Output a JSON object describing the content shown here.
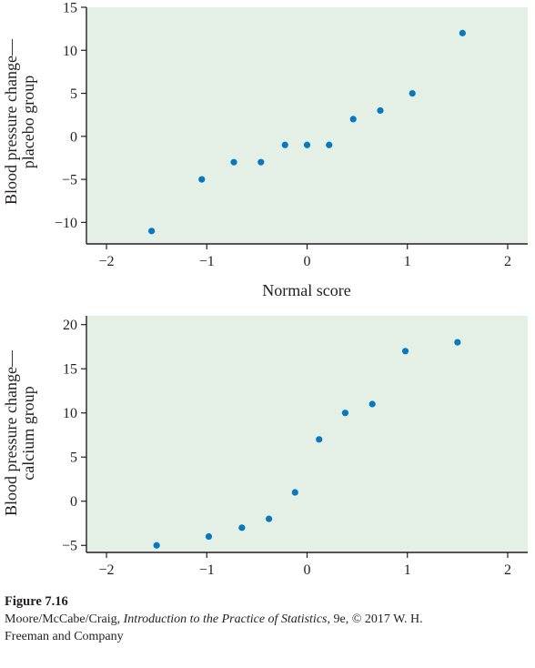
{
  "chart_data": [
    {
      "type": "scatter",
      "xlabel": "Normal score",
      "ylabel": [
        "Blood pressure change—",
        "placebo group"
      ],
      "xlim": [
        -2.2,
        2.2
      ],
      "ylim": [
        -12.5,
        15
      ],
      "xticks": [
        -2,
        -1,
        0,
        1,
        2
      ],
      "xtick_labels": [
        "−2",
        "−1",
        "0",
        "1",
        "2"
      ],
      "yticks": [
        -10,
        -5,
        0,
        5,
        10,
        15
      ],
      "ytick_labels": [
        "−10",
        "−5",
        "0",
        "5",
        "10",
        "15"
      ],
      "grid": false,
      "background_color": "#e4f0e6",
      "point_color": "#0a78be",
      "x": [
        -1.55,
        -1.05,
        -0.73,
        -0.46,
        -0.22,
        0.0,
        0.22,
        0.46,
        0.73,
        1.05,
        1.55
      ],
      "y": [
        -11,
        -5,
        -3,
        -3,
        -1,
        -1,
        -1,
        2,
        3,
        5,
        12
      ]
    },
    {
      "type": "scatter",
      "xlabel": "Normal score",
      "ylabel": [
        "Blood pressure change—",
        "calcium group"
      ],
      "xlim": [
        -2.2,
        2.2
      ],
      "ylim": [
        -5.8,
        21
      ],
      "xticks": [
        -2,
        -1,
        0,
        1,
        2
      ],
      "xtick_labels": [
        "−2",
        "−1",
        "0",
        "1",
        "2"
      ],
      "yticks": [
        -5,
        0,
        5,
        10,
        15,
        20
      ],
      "ytick_labels": [
        "−5",
        "0",
        "5",
        "10",
        "15",
        "20"
      ],
      "grid": false,
      "background_color": "#e4f0e6",
      "point_color": "#0a78be",
      "x": [
        -1.5,
        -0.98,
        -0.65,
        -0.38,
        -0.12,
        0.12,
        0.38,
        0.65,
        0.98,
        1.5
      ],
      "y": [
        -5,
        -4,
        -3,
        -2,
        1,
        7,
        10,
        11,
        17,
        18
      ]
    }
  ],
  "caption": {
    "figure_number": "Figure 7.16",
    "line1_before": "Moore/McCabe/Craig, ",
    "line1_title": "Introduction to the Practice of Statistics",
    "line1_after": ", 9e, © 2017 W. H.",
    "line2": "Freeman and Company"
  }
}
